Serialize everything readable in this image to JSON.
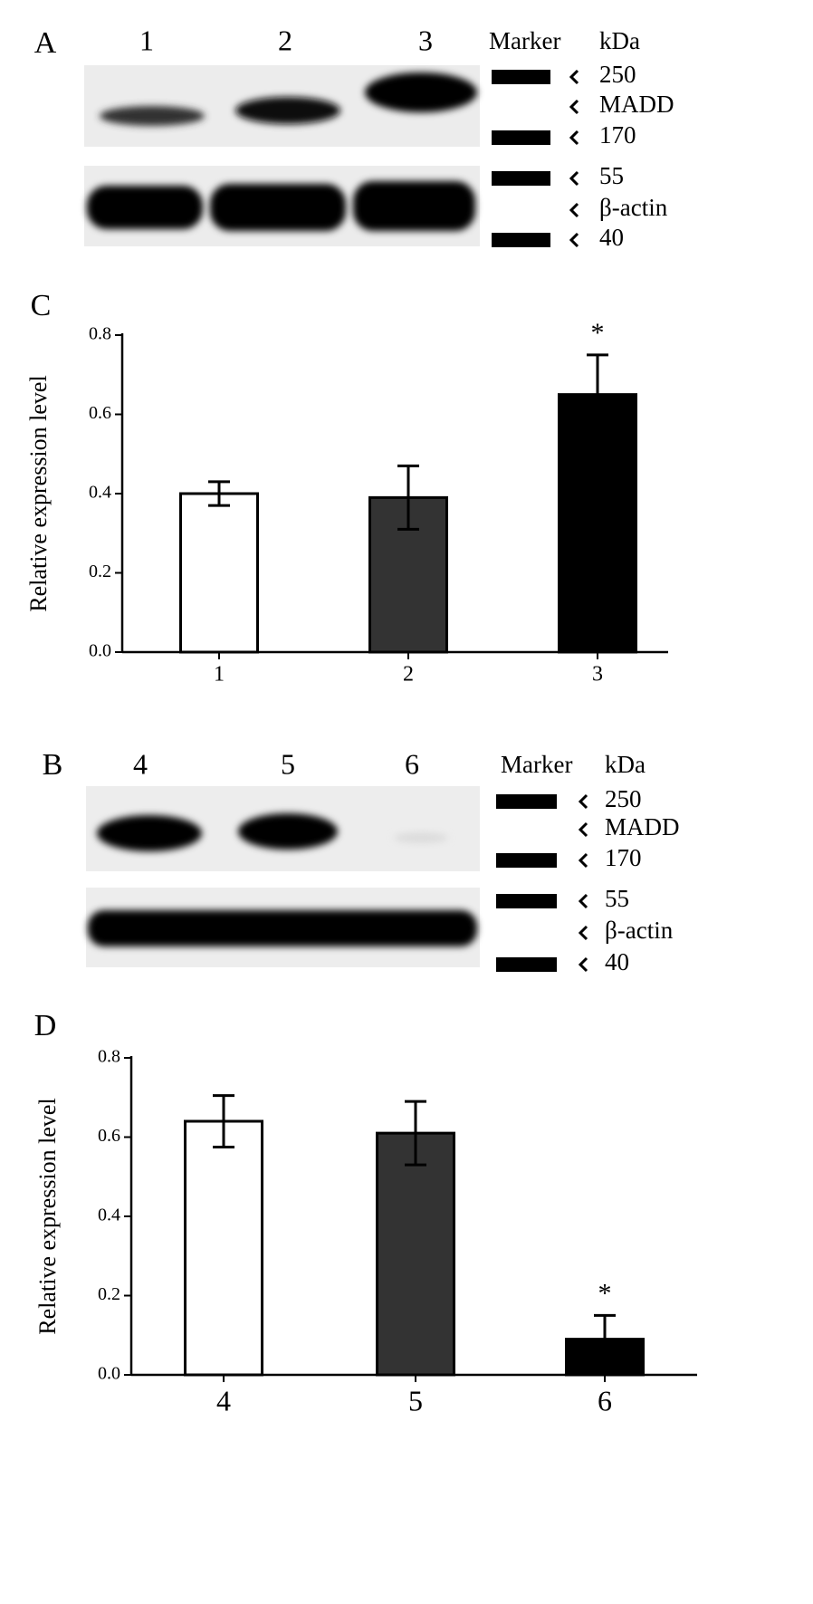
{
  "blots": [
    {
      "label": "A",
      "lanes": [
        "1",
        "2",
        "3"
      ],
      "marker_header": "Marker",
      "unit_header": "kDa",
      "markers": [
        "250",
        "MADD",
        "170",
        "55",
        "β-actin",
        "40"
      ]
    },
    {
      "label": "B",
      "lanes": [
        "4",
        "5",
        "6"
      ],
      "marker_header": "Marker",
      "unit_header": "kDa",
      "markers": [
        "250",
        "MADD",
        "170",
        "55",
        "β-actin",
        "40"
      ]
    }
  ],
  "chart_data": [
    {
      "type": "bar",
      "panel_label": "C",
      "ylabel": "Relative expression level",
      "categories": [
        "1",
        "2",
        "3"
      ],
      "values": [
        0.4,
        0.39,
        0.65
      ],
      "errors": [
        0.03,
        0.08,
        0.1
      ],
      "colors": [
        "#ffffff",
        "#333333",
        "#000000"
      ],
      "value_notes": [
        null,
        null,
        "*"
      ],
      "ylim": [
        0,
        0.8
      ],
      "yticks": [
        {
          "value": 0,
          "label": "0.0"
        },
        0.2,
        0.4,
        0.6,
        0.8
      ]
    },
    {
      "type": "bar",
      "panel_label": "D",
      "ylabel": "Relative expression level",
      "categories": [
        "4",
        "5",
        "6"
      ],
      "values": [
        0.64,
        0.61,
        0.09
      ],
      "errors": [
        0.065,
        0.08,
        0.06
      ],
      "colors": [
        "#ffffff",
        "#333333",
        "#000000"
      ],
      "value_notes": [
        null,
        null,
        "*"
      ],
      "ylim": [
        0,
        0.8
      ],
      "yticks": [
        {
          "value": 0,
          "label": "0.0"
        },
        0.2,
        0.4,
        0.6,
        0.8
      ]
    }
  ]
}
